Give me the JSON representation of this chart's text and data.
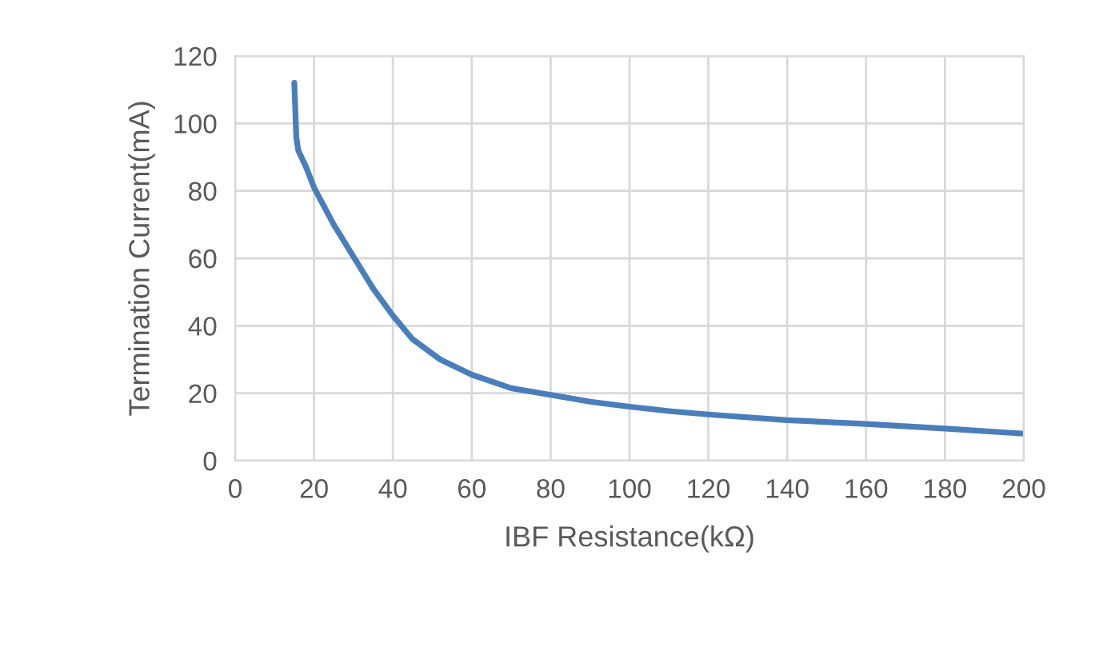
{
  "chart_data": {
    "type": "line",
    "xlabel": "IBF Resistance(kΩ)",
    "ylabel": "Termination Current(mA)",
    "series": [
      {
        "color": "#4a7ebb",
        "x": [
          15,
          15.5,
          16,
          18,
          20,
          25,
          30,
          35,
          40,
          45,
          52,
          60,
          70,
          80,
          90,
          100,
          110,
          120,
          140,
          160,
          180,
          200
        ],
        "values": [
          112,
          96,
          92,
          87,
          81,
          70,
          60.5,
          51,
          43,
          36,
          30,
          25.5,
          21.5,
          19.5,
          17.5,
          16,
          14.7,
          13.7,
          12,
          10.9,
          9.5,
          8
        ]
      }
    ],
    "xlim": [
      0,
      200
    ],
    "xticks": [
      0,
      20,
      40,
      60,
      80,
      100,
      120,
      140,
      160,
      180,
      200
    ],
    "ylim": [
      0,
      120
    ],
    "yticks": [
      0,
      20,
      40,
      60,
      80,
      100,
      120
    ],
    "grid": true,
    "line_style": "solid",
    "marker": "none"
  }
}
